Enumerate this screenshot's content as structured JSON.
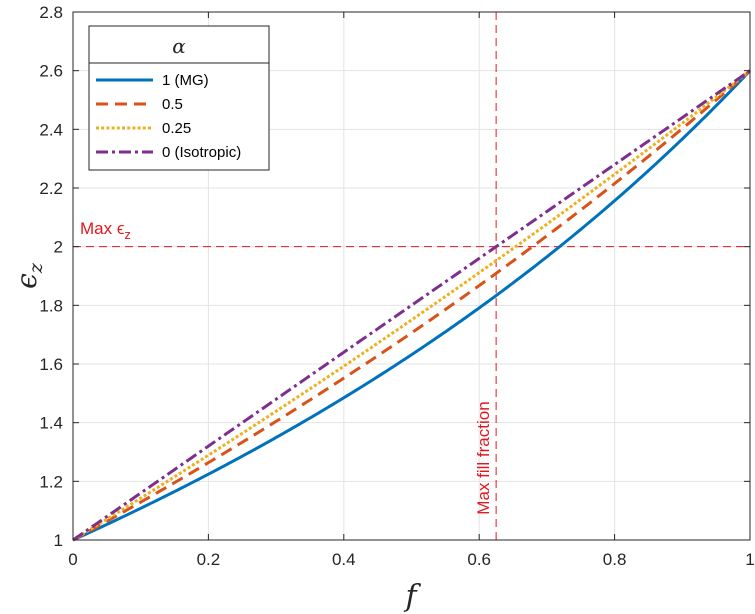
{
  "chart_data": {
    "type": "line",
    "xlabel": "f",
    "ylabel_base": "ϵ",
    "ylabel_sub": "z",
    "xlim": [
      0,
      1
    ],
    "ylim": [
      1,
      2.8
    ],
    "xticks": [
      0,
      0.2,
      0.4,
      0.6,
      0.8,
      1
    ],
    "xtick_labels": [
      "0",
      "0.2",
      "0.4",
      "0.6",
      "0.8",
      "1"
    ],
    "yticks": [
      1,
      1.2,
      1.4,
      1.6,
      1.8,
      2,
      2.2,
      2.4,
      2.6,
      2.8
    ],
    "ytick_labels": [
      "1",
      "1.2",
      "1.4",
      "1.6",
      "1.8",
      "2",
      "2.2",
      "2.4",
      "2.6",
      "2.8"
    ],
    "grid": true,
    "legend_title": "α",
    "legend_position": "top-left",
    "eps_host": 1.0,
    "eps_inclusion": 2.6,
    "series": [
      {
        "name": "1 (MG)",
        "alpha": 1,
        "color": "#0072bd",
        "style": "solid"
      },
      {
        "name": "0.5",
        "alpha": 0.5,
        "color": "#d95319",
        "style": "dashed"
      },
      {
        "name": "0.25",
        "alpha": 0.25,
        "color": "#edb120",
        "style": "dotted"
      },
      {
        "name": "0 (Isotropic)",
        "alpha": 0,
        "color": "#7e2f8e",
        "style": "dashdot"
      }
    ],
    "annotations": {
      "max_eps_label_base": "Max ϵ",
      "max_eps_label_sub": "z",
      "max_eps_value": 2.0,
      "max_fill_label": "Max fill fraction",
      "max_fill_value": 0.625,
      "color": "#e0191e"
    }
  }
}
